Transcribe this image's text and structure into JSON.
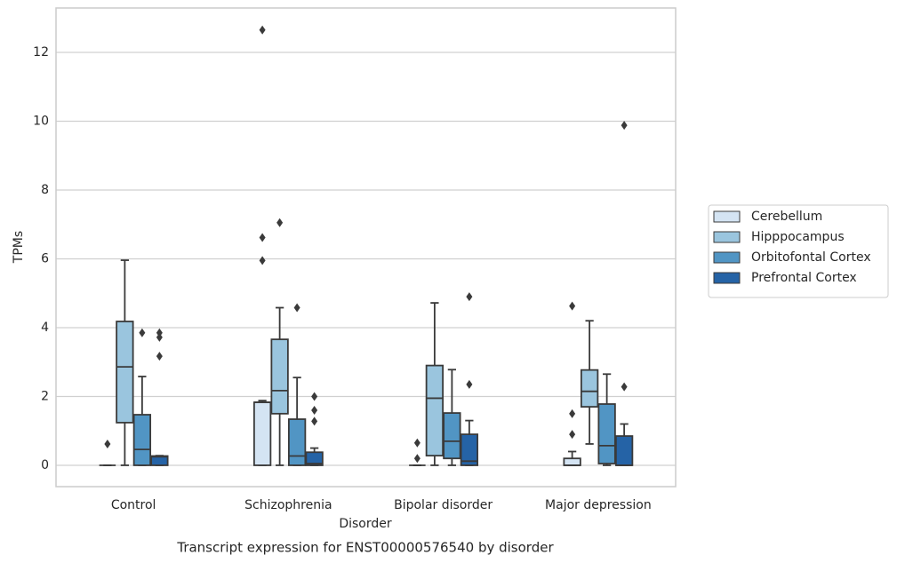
{
  "chart_data": {
    "type": "box",
    "title": "Transcript expression for ENST00000576540 by disorder",
    "xlabel": "Disorder",
    "ylabel": "TPMs",
    "categories": [
      "Control",
      "Schizophrenia",
      "Bipolar disorder",
      "Major depression"
    ],
    "ylim": [
      -0.62,
      13.29
    ],
    "yticks": [
      0,
      2,
      4,
      6,
      8,
      10,
      12
    ],
    "grid": true,
    "legend": "right",
    "series": [
      {
        "name": "Cerebellum",
        "color": "#d4e4f3",
        "boxes": [
          {
            "min": 0,
            "q1": 0,
            "median": 0,
            "q3": 0,
            "max": 0,
            "outliers": [
              0.62
            ]
          },
          {
            "min": 0,
            "q1": 0,
            "median": 1.83,
            "q3": 1.83,
            "max": 1.88,
            "outliers": [
              12.65,
              6.62,
              5.95
            ]
          },
          {
            "min": 0,
            "q1": 0,
            "median": 0,
            "q3": 0,
            "max": 0,
            "outliers": [
              0.65,
              0.2
            ]
          },
          {
            "min": 0,
            "q1": 0,
            "median": 0,
            "q3": 0.2,
            "max": 0.4,
            "outliers": [
              4.63,
              1.5,
              0.9
            ]
          }
        ]
      },
      {
        "name": "Hipppocampus",
        "color": "#9ac5de",
        "boxes": [
          {
            "min": 0,
            "q1": 1.24,
            "median": 2.86,
            "q3": 4.18,
            "max": 5.96,
            "outliers": []
          },
          {
            "min": 0,
            "q1": 1.5,
            "median": 2.17,
            "q3": 3.66,
            "max": 4.58,
            "outliers": [
              7.05
            ]
          },
          {
            "min": 0,
            "q1": 0.28,
            "median": 1.95,
            "q3": 2.9,
            "max": 4.72,
            "outliers": []
          },
          {
            "min": 0.62,
            "q1": 1.7,
            "median": 2.15,
            "q3": 2.77,
            "max": 4.2,
            "outliers": []
          }
        ]
      },
      {
        "name": "Orbitofontal Cortex",
        "color": "#5195c4",
        "boxes": [
          {
            "min": 0,
            "q1": 0,
            "median": 0.46,
            "q3": 1.47,
            "max": 2.58,
            "outliers": [
              3.85
            ]
          },
          {
            "min": 0,
            "q1": 0,
            "median": 0.27,
            "q3": 1.34,
            "max": 2.55,
            "outliers": [
              4.58
            ]
          },
          {
            "min": 0,
            "q1": 0.2,
            "median": 0.7,
            "q3": 1.52,
            "max": 2.78,
            "outliers": []
          },
          {
            "min": 0,
            "q1": 0.05,
            "median": 0.57,
            "q3": 1.78,
            "max": 2.65,
            "outliers": []
          }
        ]
      },
      {
        "name": "Prefrontal Cortex",
        "color": "#2563a6",
        "boxes": [
          {
            "min": 0,
            "q1": 0,
            "median": 0.25,
            "q3": 0.27,
            "max": 0.28,
            "outliers": [
              3.85,
              3.72,
              3.17
            ]
          },
          {
            "min": 0,
            "q1": 0,
            "median": 0.05,
            "q3": 0.38,
            "max": 0.5,
            "outliers": [
              2.0,
              1.6,
              1.28
            ]
          },
          {
            "min": 0,
            "q1": 0,
            "median": 0.12,
            "q3": 0.9,
            "max": 1.3,
            "outliers": [
              4.9,
              2.35
            ]
          },
          {
            "min": 0,
            "q1": 0,
            "median": 0,
            "q3": 0.85,
            "max": 1.2,
            "outliers": [
              9.88,
              2.28
            ]
          }
        ]
      }
    ]
  }
}
